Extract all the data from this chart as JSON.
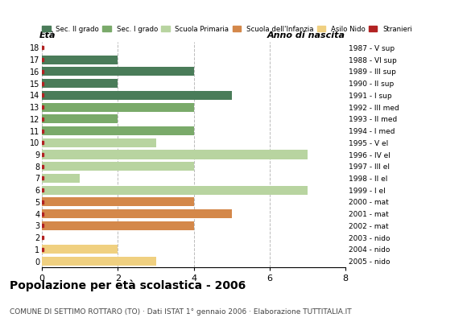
{
  "ages": [
    0,
    1,
    2,
    3,
    4,
    5,
    6,
    7,
    8,
    9,
    10,
    11,
    12,
    13,
    14,
    15,
    16,
    17,
    18
  ],
  "anno_nascita": [
    "2005 - nido",
    "2004 - nido",
    "2003 - nido",
    "2002 - mat",
    "2001 - mat",
    "2000 - mat",
    "1999 - I el",
    "1998 - II el",
    "1997 - III el",
    "1996 - IV el",
    "1995 - V el",
    "1994 - I med",
    "1993 - II med",
    "1992 - III med",
    "1991 - I sup",
    "1990 - II sup",
    "1989 - III sup",
    "1988 - VI sup",
    "1987 - V sup"
  ],
  "values": [
    3,
    2,
    0,
    4,
    5,
    4,
    7,
    1,
    4,
    7,
    3,
    4,
    2,
    4,
    5,
    2,
    4,
    2,
    0
  ],
  "colors": [
    "#f0d080",
    "#f0d080",
    "#f0d080",
    "#d4884a",
    "#d4884a",
    "#d4884a",
    "#b8d4a0",
    "#b8d4a0",
    "#b8d4a0",
    "#b8d4a0",
    "#b8d4a0",
    "#7aaa6a",
    "#7aaa6a",
    "#7aaa6a",
    "#4a7c59",
    "#4a7c59",
    "#4a7c59",
    "#4a7c59",
    "#4a7c59"
  ],
  "stranieri_ages": [
    0,
    1,
    2,
    3,
    4,
    5,
    6,
    7,
    8,
    9,
    10,
    11,
    12,
    13,
    14,
    15,
    16,
    17,
    18
  ],
  "has_stranieri": [
    false,
    true,
    true,
    true,
    true,
    true,
    true,
    true,
    true,
    true,
    true,
    true,
    true,
    true,
    true,
    true,
    true,
    true,
    true
  ],
  "legend_labels": [
    "Sec. II grado",
    "Sec. I grado",
    "Scuola Primaria",
    "Scuola dell'Infanzia",
    "Asilo Nido",
    "Stranieri"
  ],
  "legend_colors": [
    "#4a7c59",
    "#7aaa6a",
    "#b8d4a0",
    "#d4884a",
    "#f0d080",
    "#b22222"
  ],
  "title": "Popolazione per età scolastica - 2006",
  "subtitle": "COMUNE DI SETTIMO ROTTARO (TO) · Dati ISTAT 1° gennaio 2006 · Elaborazione TUTTITALIA.IT",
  "xlabel_left": "Età",
  "xlabel_right": "Anno di nascita",
  "xlim": [
    0,
    8
  ],
  "xticks": [
    0,
    2,
    4,
    6,
    8
  ],
  "bar_height": 0.75,
  "background_color": "#ffffff",
  "grid_color": "#bbbbbb",
  "stranieri_color": "#b22222"
}
